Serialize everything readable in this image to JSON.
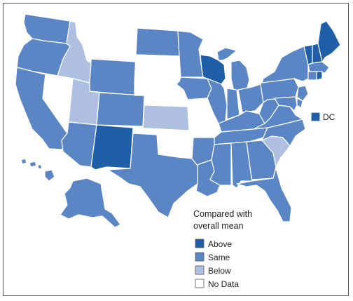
{
  "colors": {
    "above": "#1f5fa8",
    "same": "#5b86c5",
    "below": "#aebfe2",
    "nodata": "#ffffff",
    "outline": "#555555",
    "border": "#ffffff"
  },
  "states": [
    {
      "code": "WA",
      "category": "same"
    },
    {
      "code": "OR",
      "category": "same"
    },
    {
      "code": "CA",
      "category": "same"
    },
    {
      "code": "NV",
      "category": "nodata"
    },
    {
      "code": "ID",
      "category": "below"
    },
    {
      "code": "MT",
      "category": "nodata"
    },
    {
      "code": "WY",
      "category": "same"
    },
    {
      "code": "UT",
      "category": "below"
    },
    {
      "code": "AZ",
      "category": "same"
    },
    {
      "code": "CO",
      "category": "same"
    },
    {
      "code": "NM",
      "category": "above"
    },
    {
      "code": "ND",
      "category": "same"
    },
    {
      "code": "SD",
      "category": "nodata"
    },
    {
      "code": "NE",
      "category": "nodata"
    },
    {
      "code": "KS",
      "category": "below"
    },
    {
      "code": "OK",
      "category": "nodata"
    },
    {
      "code": "TX",
      "category": "same"
    },
    {
      "code": "MN",
      "category": "same"
    },
    {
      "code": "IA",
      "category": "same"
    },
    {
      "code": "MO",
      "category": "nodata"
    },
    {
      "code": "AR",
      "category": "same"
    },
    {
      "code": "LA",
      "category": "same"
    },
    {
      "code": "WI",
      "category": "above"
    },
    {
      "code": "IL",
      "category": "same"
    },
    {
      "code": "MI",
      "category": "same"
    },
    {
      "code": "IN",
      "category": "same"
    },
    {
      "code": "OH",
      "category": "same"
    },
    {
      "code": "KY",
      "category": "same"
    },
    {
      "code": "TN",
      "category": "same"
    },
    {
      "code": "MS",
      "category": "same"
    },
    {
      "code": "AL",
      "category": "same"
    },
    {
      "code": "GA",
      "category": "same"
    },
    {
      "code": "FL",
      "category": "same"
    },
    {
      "code": "SC",
      "category": "below"
    },
    {
      "code": "NC",
      "category": "same"
    },
    {
      "code": "VA",
      "category": "same"
    },
    {
      "code": "WV",
      "category": "same"
    },
    {
      "code": "PA",
      "category": "same"
    },
    {
      "code": "NY",
      "category": "same"
    },
    {
      "code": "VT",
      "category": "above"
    },
    {
      "code": "NH",
      "category": "above"
    },
    {
      "code": "ME",
      "category": "above"
    },
    {
      "code": "MA",
      "category": "same"
    },
    {
      "code": "RI",
      "category": "above"
    },
    {
      "code": "CT",
      "category": "same"
    },
    {
      "code": "NJ",
      "category": "same"
    },
    {
      "code": "DE",
      "category": "same"
    },
    {
      "code": "MD",
      "category": "same"
    },
    {
      "code": "AK",
      "category": "same"
    },
    {
      "code": "HI",
      "category": "same"
    },
    {
      "code": "DC",
      "category": "above"
    }
  ],
  "dc_label": "DC",
  "legend": {
    "title_line1": "Compared with",
    "title_line2": "overall mean",
    "items": [
      {
        "key": "above",
        "label": "Above"
      },
      {
        "key": "same",
        "label": "Same"
      },
      {
        "key": "below",
        "label": "Below"
      },
      {
        "key": "nodata",
        "label": "No Data"
      }
    ]
  }
}
